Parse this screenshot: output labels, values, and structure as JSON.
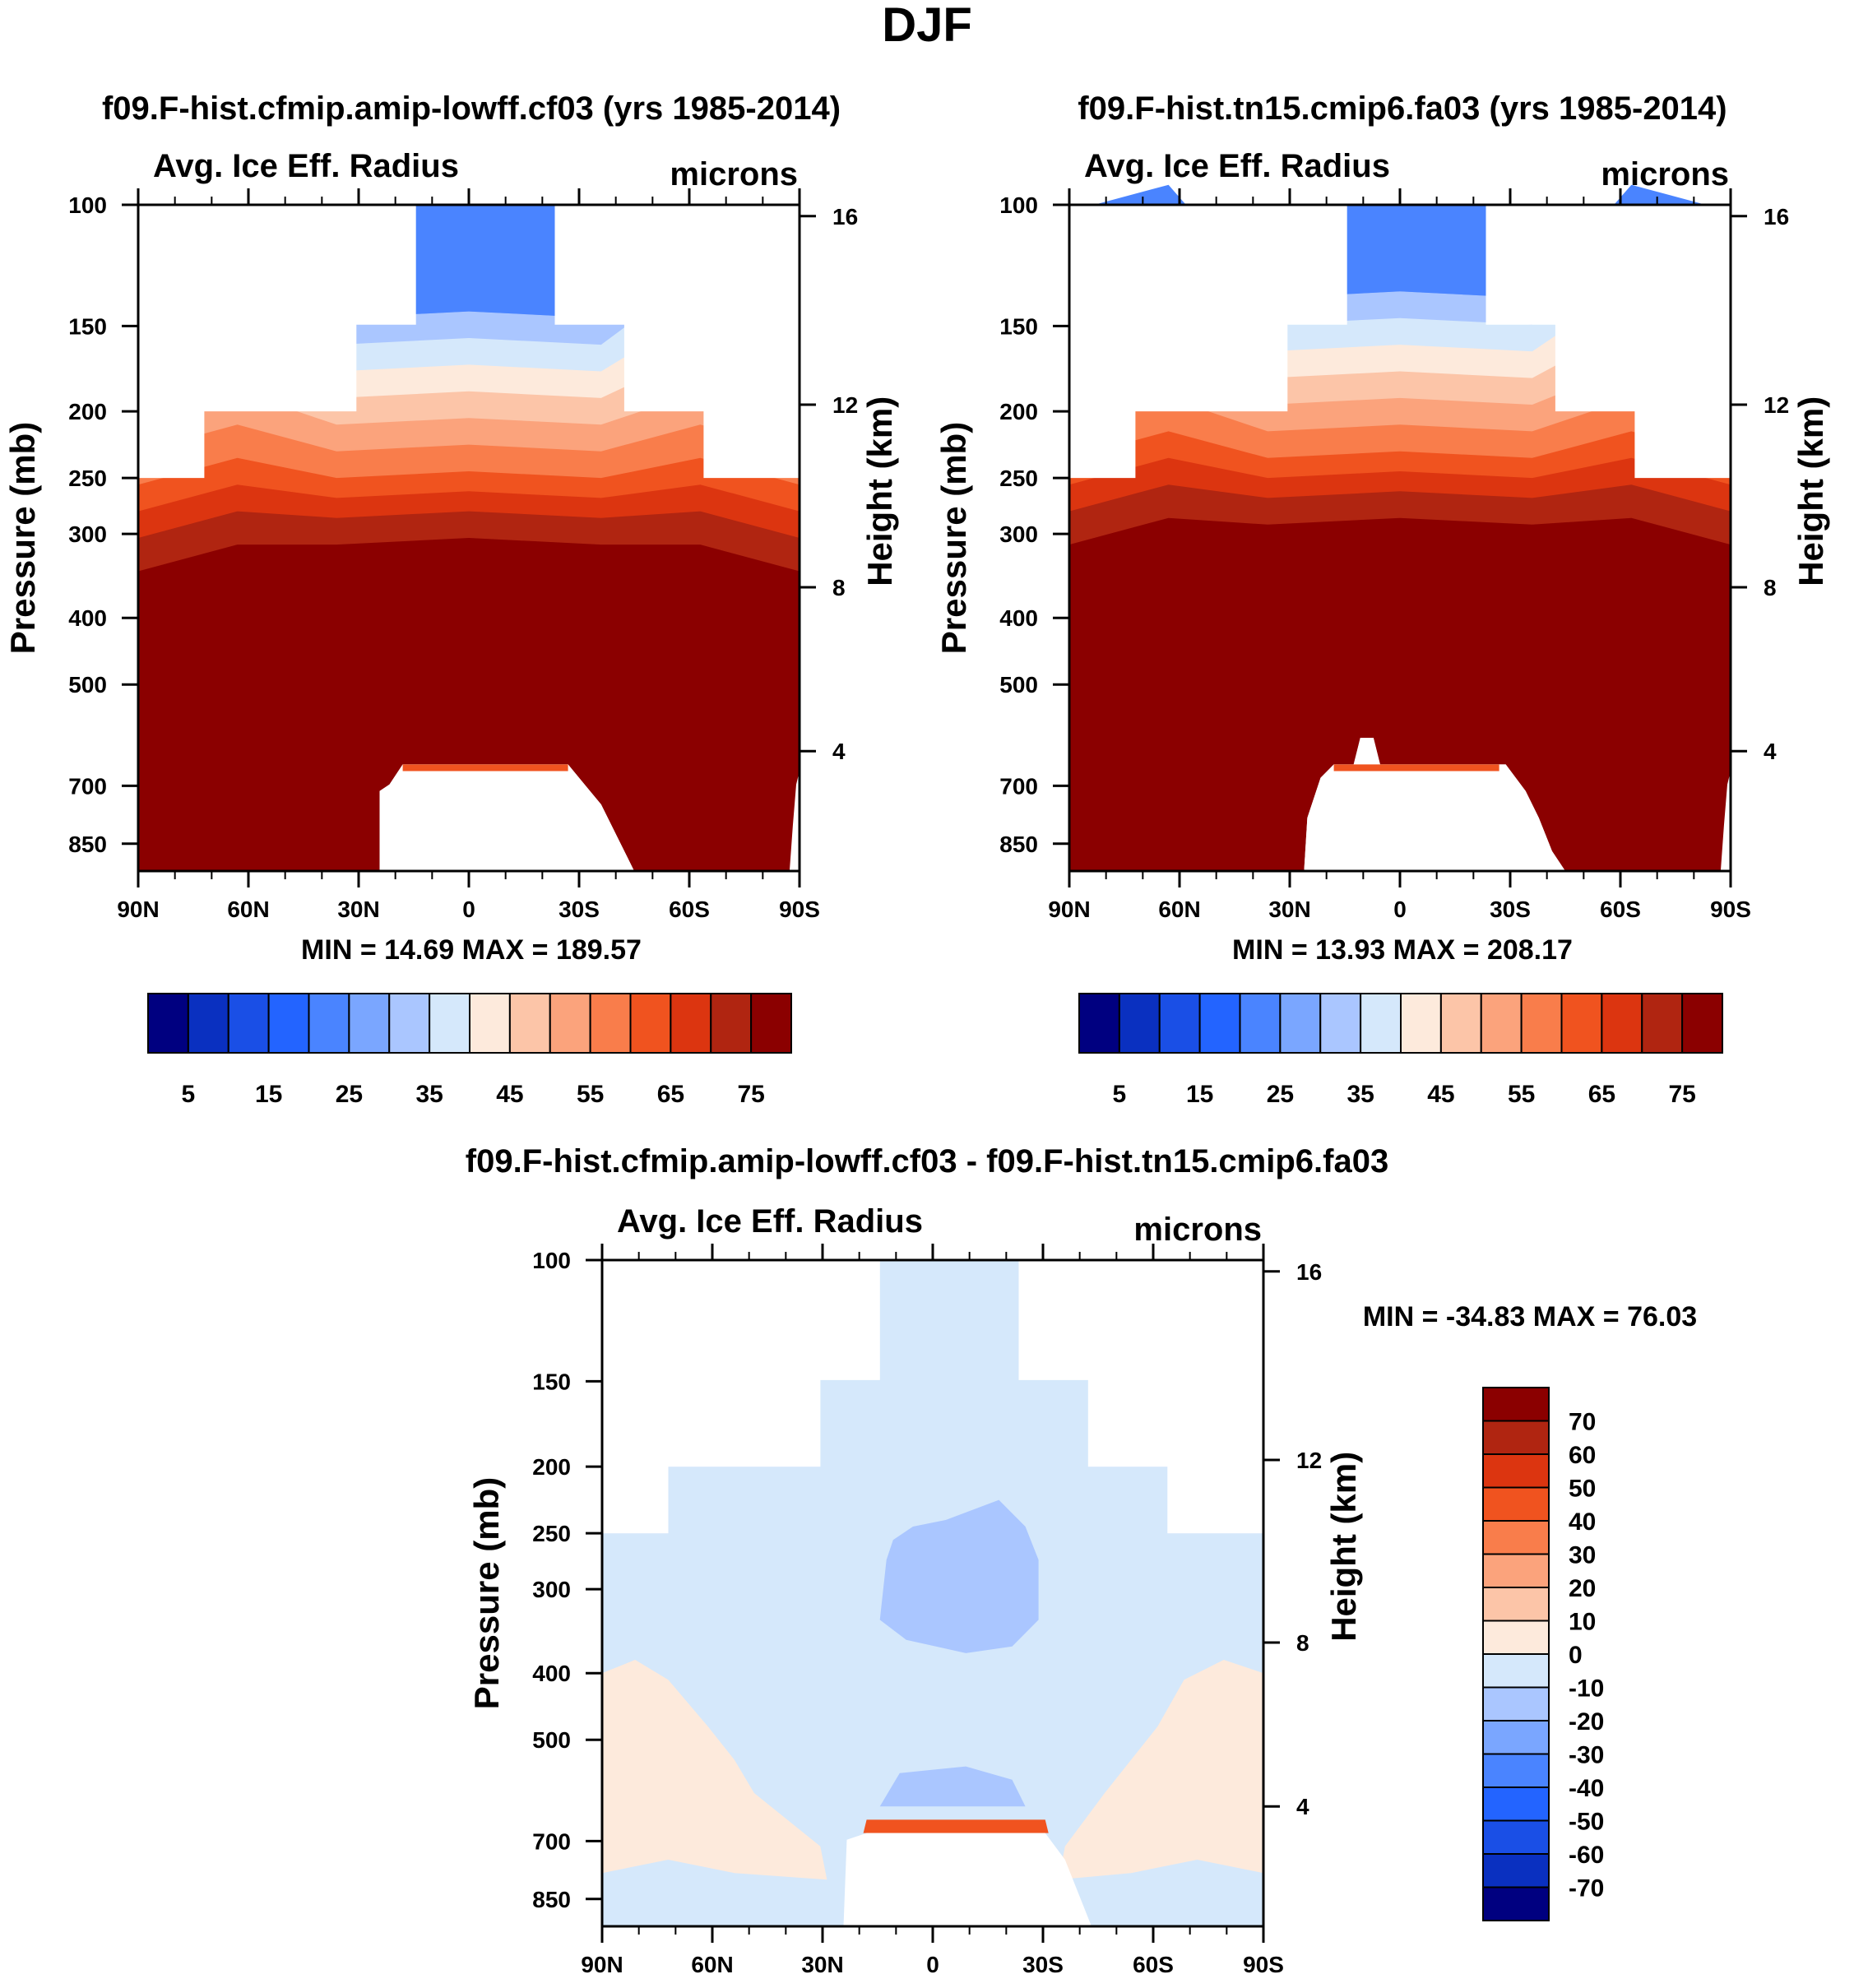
{
  "figure_title": "DJF",
  "chart_data": [
    {
      "type": "heatmap",
      "title": "f09.F-hist.cfmip.amip-lowff.cf03 (yrs 1985-2014)",
      "left_label": "Avg. Ice Eff. Radius",
      "right_label": "microns",
      "ylabel": "Pressure (mb)",
      "ylabel_right": "Height (km)",
      "x_ticks": [
        "90N",
        "60N",
        "30N",
        "0",
        "30S",
        "60S",
        "90S"
      ],
      "y_ticks": [
        "100",
        "150",
        "200",
        "250",
        "300",
        "400",
        "500",
        "700",
        "850"
      ],
      "y_right_ticks": [
        "16",
        "12",
        "8",
        "4"
      ],
      "stats": "MIN =  14.69  MAX = 189.57",
      "min": 14.69,
      "max": 189.57,
      "colorbar_levels": [
        5,
        10,
        15,
        20,
        25,
        30,
        35,
        40,
        45,
        50,
        55,
        60,
        65,
        70,
        75
      ],
      "colorbar_labels": [
        "5",
        "15",
        "25",
        "35",
        "45",
        "55",
        "65",
        "75"
      ],
      "colors": [
        "#000080",
        "#0a30c0",
        "#1a4fe6",
        "#2364ff",
        "#4a84ff",
        "#7aa6ff",
        "#aac6ff",
        "#d5e8fb",
        "#fdeadc",
        "#fcc5a8",
        "#fba37c",
        "#f97d4b",
        "#f0531f",
        "#dc3510",
        "#b02511",
        "#8b0000"
      ]
    },
    {
      "type": "heatmap",
      "title": "f09.F-hist.tn15.cmip6.fa03 (yrs 1985-2014)",
      "left_label": "Avg. Ice Eff. Radius",
      "right_label": "microns",
      "ylabel": "Pressure (mb)",
      "ylabel_right": "Height (km)",
      "x_ticks": [
        "90N",
        "60N",
        "30N",
        "0",
        "30S",
        "60S",
        "90S"
      ],
      "y_ticks": [
        "100",
        "150",
        "200",
        "250",
        "300",
        "400",
        "500",
        "700",
        "850"
      ],
      "y_right_ticks": [
        "16",
        "12",
        "8",
        "4"
      ],
      "stats": "MIN =  13.93  MAX = 208.17",
      "min": 13.93,
      "max": 208.17,
      "colorbar_levels": [
        5,
        10,
        15,
        20,
        25,
        30,
        35,
        40,
        45,
        50,
        55,
        60,
        65,
        70,
        75
      ],
      "colorbar_labels": [
        "5",
        "15",
        "25",
        "35",
        "45",
        "55",
        "65",
        "75"
      ],
      "colors": [
        "#000080",
        "#0a30c0",
        "#1a4fe6",
        "#2364ff",
        "#4a84ff",
        "#7aa6ff",
        "#aac6ff",
        "#d5e8fb",
        "#fdeadc",
        "#fcc5a8",
        "#fba37c",
        "#f97d4b",
        "#f0531f",
        "#dc3510",
        "#b02511",
        "#8b0000"
      ]
    },
    {
      "type": "heatmap",
      "title": "f09.F-hist.cfmip.amip-lowff.cf03 - f09.F-hist.tn15.cmip6.fa03",
      "left_label": "Avg. Ice Eff. Radius",
      "right_label": "microns",
      "ylabel": "Pressure (mb)",
      "ylabel_right": "Height (km)",
      "x_ticks": [
        "90N",
        "60N",
        "30N",
        "0",
        "30S",
        "60S",
        "90S"
      ],
      "y_ticks": [
        "100",
        "150",
        "200",
        "250",
        "300",
        "400",
        "500",
        "700",
        "850"
      ],
      "y_right_ticks": [
        "16",
        "12",
        "8",
        "4"
      ],
      "stats": "MIN = -34.83  MAX =  76.03",
      "min": -34.83,
      "max": 76.03,
      "colorbar_levels": [
        70,
        60,
        50,
        40,
        30,
        20,
        10,
        0,
        -10,
        -20,
        -30,
        -40,
        -50,
        -60,
        -70
      ],
      "colorbar_labels": [
        "70",
        "60",
        "50",
        "40",
        "30",
        "20",
        "10",
        "0",
        "-10",
        "-20",
        "-30",
        "-40",
        "-50",
        "-60",
        "-70"
      ],
      "colors": [
        "#8b0000",
        "#b02511",
        "#dc3510",
        "#f0531f",
        "#f97d4b",
        "#fba37c",
        "#fcc5a8",
        "#fdeadc",
        "#d5e8fb",
        "#aac6ff",
        "#7aa6ff",
        "#4a84ff",
        "#2364ff",
        "#1a4fe6",
        "#0a30c0",
        "#000080"
      ]
    }
  ]
}
